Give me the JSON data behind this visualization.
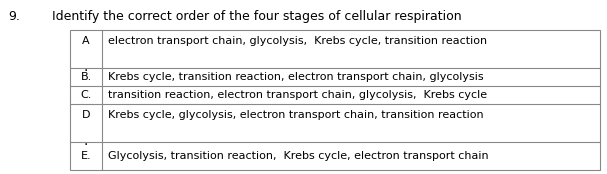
{
  "question_number": "9.",
  "question_text": "Identify the correct order of the four stages of cellular respiration",
  "options": [
    {
      "label": "A",
      "text": "electron transport chain, glycolysis,  Krebs cycle, transition reaction",
      "tall": true
    },
    {
      "label": "B.",
      "text": "Krebs cycle, transition reaction, electron transport chain, glycolysis",
      "tall": false
    },
    {
      "label": "C.",
      "text": "transition reaction, electron transport chain, glycolysis,  Krebs cycle",
      "tall": false
    },
    {
      "label": "D",
      "text": "Krebs cycle, glycolysis, electron transport chain, transition reaction",
      "tall": true
    },
    {
      "label": "E.",
      "text": "Glycolysis, transition reaction,  Krebs cycle, electron transport chain",
      "tall": false
    }
  ],
  "bg_color": "#ffffff",
  "text_color": "#000000",
  "border_color": "#888888",
  "font_size": 8,
  "question_font_size": 9
}
